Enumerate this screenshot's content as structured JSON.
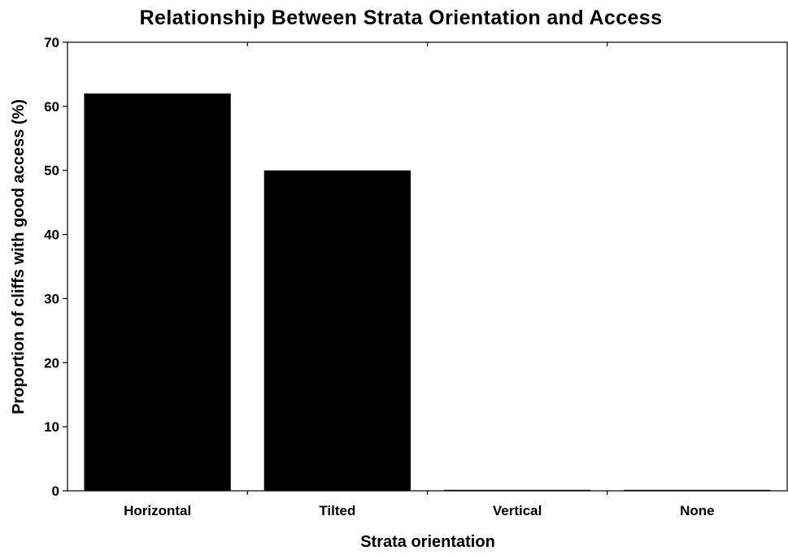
{
  "chart_data": {
    "type": "bar",
    "title": "Relationship Between Strata Orientation and Access",
    "xlabel": "Strata orientation",
    "ylabel": "Proportion of cliffs with good access (%)",
    "categories": [
      "Horizontal",
      "Tilted",
      "Vertical",
      "None"
    ],
    "values": [
      62,
      50,
      0,
      0
    ],
    "ylim": [
      0,
      70
    ],
    "yticks": [
      0,
      10,
      20,
      30,
      40,
      50,
      60,
      70
    ],
    "bar_color": "#000000",
    "grid": false,
    "legend": "none"
  }
}
